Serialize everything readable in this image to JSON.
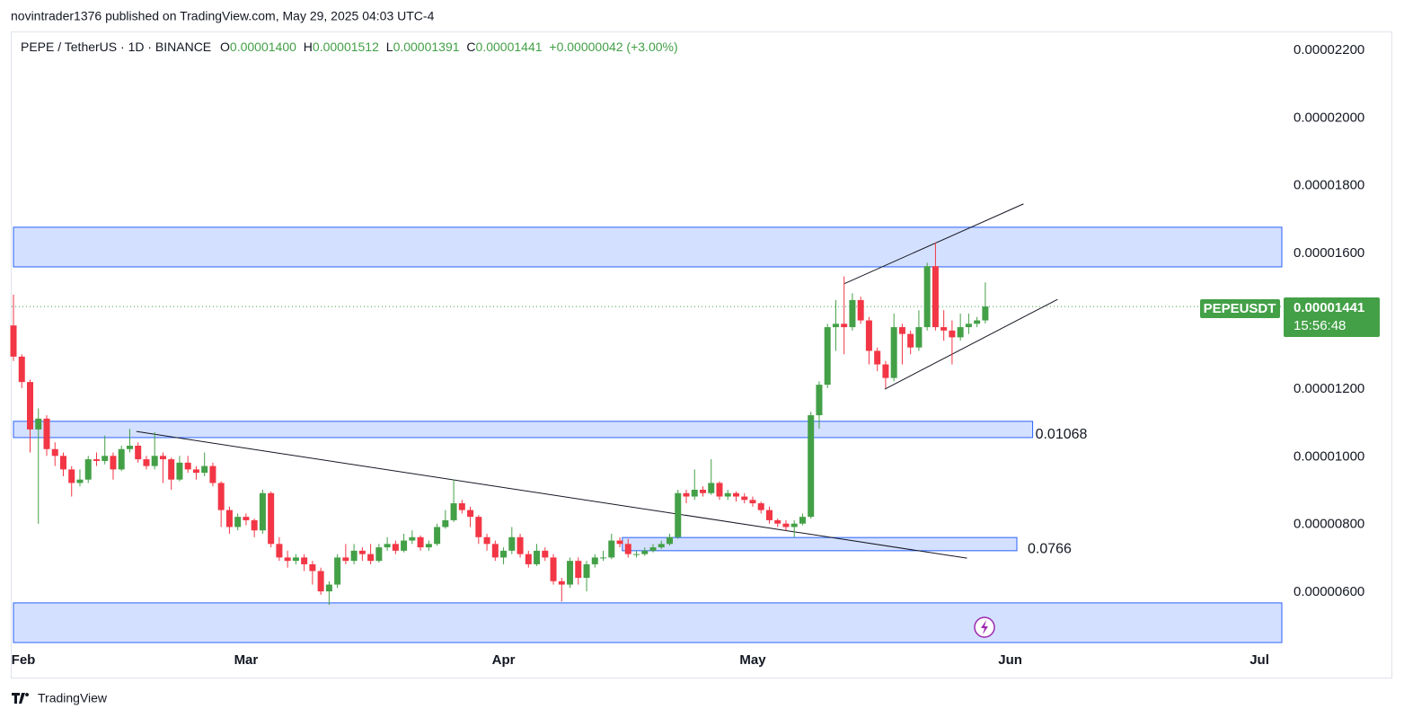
{
  "publisher": "novintrader1376 published on TradingView.com, May 29, 2025 04:03 UTC-4",
  "brand": "TradingView",
  "chart_data": {
    "type": "candlestick",
    "symbol": "PEPE / TetherUS · 1D · BINANCE",
    "legend": {
      "open_label": "O",
      "open": "0.00001400",
      "high_label": "H",
      "high": "0.00001512",
      "low_label": "L",
      "low": "0.00001391",
      "close_label": "C",
      "close": "0.00001441",
      "change": "+0.00000042 (+3.00%)"
    },
    "ticker": "PEPEUSDT",
    "last_price": "0.00001441",
    "countdown": "15:56:48",
    "up_color": "#43a047",
    "down_color": "#f23645",
    "zone_color": "#2962ff",
    "xlim": [
      0,
      152.7
    ],
    "xticks": [
      {
        "value": 0,
        "label": "Feb"
      },
      {
        "value": 28,
        "label": "Mar"
      },
      {
        "value": 59,
        "label": "Apr"
      },
      {
        "value": 89,
        "label": "May"
      },
      {
        "value": 120,
        "label": "Jun"
      },
      {
        "value": 150,
        "label": "Jul"
      }
    ],
    "ylim": [
      4.49e-06,
      2.253e-05
    ],
    "yticks": [
      {
        "value": 2.2e-05,
        "label": "0.00002200"
      },
      {
        "value": 2e-05,
        "label": "0.00002000"
      },
      {
        "value": 1.8e-05,
        "label": "0.00001800"
      },
      {
        "value": 1.6e-05,
        "label": "0.00001600"
      },
      {
        "value": 1.2e-05,
        "label": "0.00001200"
      },
      {
        "value": 1e-05,
        "label": "0.00001000"
      },
      {
        "value": 8e-06,
        "label": "0.00000800"
      },
      {
        "value": 6e-06,
        "label": "0.00000600"
      }
    ],
    "zones": [
      {
        "x": [
          0,
          152.7
        ],
        "y": [
          1.675e-05,
          1.558e-05
        ]
      },
      {
        "x": [
          0,
          122.7
        ],
        "y": [
          1.102e-05,
          1.054e-05
        ],
        "label": "0.01068"
      },
      {
        "x": [
          73.3,
          120.8
        ],
        "y": [
          7.59e-06,
          7.2e-06
        ],
        "label": "0.0766"
      },
      {
        "x": [
          0,
          152.7
        ],
        "y": [
          5.66e-06,
          4.49e-06
        ]
      }
    ],
    "lines": [
      {
        "x": [
          14.8,
          114.8
        ],
        "y": [
          1.072e-05,
          6.98e-06
        ]
      },
      {
        "x": [
          100,
          121.6
        ],
        "y": [
          1.508e-05,
          1.744e-05
        ]
      },
      {
        "x": [
          104.9,
          125.7
        ],
        "y": [
          1.197e-05,
          1.462e-05
        ]
      }
    ],
    "ohlc": [
      [
        1.385e-05,
        1.476e-05,
        1.28e-05,
        1.293e-05
      ],
      [
        1.293e-05,
        1.3e-05,
        1.2e-05,
        1.218e-05
      ],
      [
        1.218e-05,
        1.225e-05,
        1.01e-05,
        1.078e-05
      ],
      [
        1.078e-05,
        1.14e-05,
        8e-06,
        1.11e-05
      ],
      [
        1.11e-05,
        1.12e-05,
        1e-05,
        1.02e-05
      ],
      [
        1.02e-05,
        1.04e-05,
        9.7e-06,
        1e-05
      ],
      [
        1e-05,
        1.01e-05,
        9.4e-06,
        9.6e-06
      ],
      [
        9.6e-06,
        9.7e-06,
        8.8e-06,
        9.2e-06
      ],
      [
        9.2e-06,
        9.6e-06,
        9.1e-06,
        9.3e-06
      ],
      [
        9.3e-06,
        1e-05,
        9.2e-06,
        9.9e-06
      ],
      [
        9.9e-06,
        1.01e-05,
        9.7e-06,
        9.85e-06
      ],
      [
        9.85e-06,
        1.06e-05,
        9.75e-06,
        1e-05
      ],
      [
        1e-05,
        1.01e-05,
        9.3e-06,
        9.6e-06
      ],
      [
        9.6e-06,
        1.03e-05,
        9.55e-06,
        1.02e-05
      ],
      [
        1.02e-05,
        1.08e-05,
        1.01e-05,
        1.03e-05
      ],
      [
        1.03e-05,
        1.04e-05,
        9.8e-06,
        9.9e-06
      ],
      [
        9.9e-06,
        1e-05,
        9.6e-06,
        9.7e-06
      ],
      [
        9.7e-06,
        1.07e-05,
        9.6e-06,
        1e-05
      ],
      [
        1e-05,
        1.01e-05,
        9.2e-06,
        9.9e-06
      ],
      [
        9.9e-06,
        9.95e-06,
        9e-06,
        9.3e-06
      ],
      [
        9.3e-06,
        1e-05,
        9.25e-06,
        9.8e-06
      ],
      [
        9.8e-06,
        1e-05,
        9.5e-06,
        9.6e-06
      ],
      [
        9.6e-06,
        9.7e-06,
        9.3e-06,
        9.5e-06
      ],
      [
        9.5e-06,
        1.01e-05,
        9.4e-06,
        9.7e-06
      ],
      [
        9.7e-06,
        9.8e-06,
        9.1e-06,
        9.2e-06
      ],
      [
        9.2e-06,
        9.25e-06,
        7.9e-06,
        8.4e-06
      ],
      [
        8.4e-06,
        8.5e-06,
        7.7e-06,
        7.9e-06
      ],
      [
        7.9e-06,
        8.3e-06,
        7.8e-06,
        8.2e-06
      ],
      [
        8.2e-06,
        8.3e-06,
        7.95e-06,
        8.1e-06
      ],
      [
        8.1e-06,
        8.15e-06,
        7.6e-06,
        7.8e-06
      ],
      [
        7.8e-06,
        9e-06,
        7.7e-06,
        8.9e-06
      ],
      [
        8.9e-06,
        8.95e-06,
        7.3e-06,
        7.4e-06
      ],
      [
        7.4e-06,
        7.6e-06,
        6.9e-06,
        7e-06
      ],
      [
        7e-06,
        7.2e-06,
        6.7e-06,
        6.9e-06
      ],
      [
        6.9e-06,
        7.1e-06,
        6.8e-06,
        7e-06
      ],
      [
        7e-06,
        7.1e-06,
        6.6e-06,
        6.8e-06
      ],
      [
        6.8e-06,
        6.9e-06,
        6.2e-06,
        6.6e-06
      ],
      [
        6.6e-06,
        6.7e-06,
        5.9e-06,
        6e-06
      ],
      [
        6e-06,
        6.3e-06,
        5.6e-06,
        6.2e-06
      ],
      [
        6.2e-06,
        7.1e-06,
        6.1e-06,
        7e-06
      ],
      [
        7e-06,
        7.4e-06,
        6.8e-06,
        6.9e-06
      ],
      [
        6.9e-06,
        7.4e-06,
        6.8e-06,
        7.2e-06
      ],
      [
        7.2e-06,
        7.3e-06,
        6.9e-06,
        7.1e-06
      ],
      [
        7.1e-06,
        7.4e-06,
        6.8e-06,
        6.9e-06
      ],
      [
        6.9e-06,
        7.4e-06,
        6.85e-06,
        7.3e-06
      ],
      [
        7.3e-06,
        7.6e-06,
        7.2e-06,
        7.4e-06
      ],
      [
        7.4e-06,
        7.5e-06,
        7.1e-06,
        7.2e-06
      ],
      [
        7.2e-06,
        7.7e-06,
        7.15e-06,
        7.5e-06
      ],
      [
        7.5e-06,
        7.8e-06,
        7.4e-06,
        7.6e-06
      ],
      [
        7.6e-06,
        7.65e-06,
        7.2e-06,
        7.3e-06
      ],
      [
        7.3e-06,
        7.5e-06,
        7.2e-06,
        7.4e-06
      ],
      [
        7.4e-06,
        8e-06,
        7.35e-06,
        7.9e-06
      ],
      [
        7.9e-06,
        8.4e-06,
        7.85e-06,
        8.1e-06
      ],
      [
        8.1e-06,
        9.3e-06,
        8.05e-06,
        8.6e-06
      ],
      [
        8.6e-06,
        8.7e-06,
        8.3e-06,
        8.4e-06
      ],
      [
        8.4e-06,
        8.5e-06,
        7.9e-06,
        8.2e-06
      ],
      [
        8.2e-06,
        8.25e-06,
        7.4e-06,
        7.6e-06
      ],
      [
        7.6e-06,
        7.7e-06,
        7.2e-06,
        7.4e-06
      ],
      [
        7.4e-06,
        7.5e-06,
        6.9e-06,
        7e-06
      ],
      [
        7e-06,
        7.3e-06,
        6.8e-06,
        7.2e-06
      ],
      [
        7.2e-06,
        7.9e-06,
        7.1e-06,
        7.6e-06
      ],
      [
        7.6e-06,
        7.7e-06,
        7e-06,
        7.1e-06
      ],
      [
        7.1e-06,
        7.2e-06,
        6.7e-06,
        6.8e-06
      ],
      [
        6.8e-06,
        7.4e-06,
        6.75e-06,
        7.2e-06
      ],
      [
        7.2e-06,
        7.3e-06,
        6.9e-06,
        7e-06
      ],
      [
        7e-06,
        7.1e-06,
        6.2e-06,
        6.3e-06
      ],
      [
        6.3e-06,
        6.4e-06,
        5.7e-06,
        6.2e-06
      ],
      [
        6.2e-06,
        7e-06,
        6.1e-06,
        6.9e-06
      ],
      [
        6.9e-06,
        7e-06,
        6.2e-06,
        6.4e-06
      ],
      [
        6.4e-06,
        6.9e-06,
        6e-06,
        6.8e-06
      ],
      [
        6.8e-06,
        7.1e-06,
        6.7e-06,
        7e-06
      ],
      [
        7e-06,
        7.2e-06,
        6.9e-06,
        7e-06
      ],
      [
        7e-06,
        7.7e-06,
        6.95e-06,
        7.5e-06
      ],
      [
        7.5e-06,
        7.6e-06,
        7.3e-06,
        7.4e-06
      ],
      [
        7.4e-06,
        7.55e-06,
        7e-06,
        7.1e-06
      ],
      [
        7.1e-06,
        7.2e-06,
        7e-06,
        7.1e-06
      ],
      [
        7.1e-06,
        7.3e-06,
        7.05e-06,
        7.2e-06
      ],
      [
        7.2e-06,
        7.4e-06,
        7.15e-06,
        7.3e-06
      ],
      [
        7.3e-06,
        7.5e-06,
        7.25e-06,
        7.4e-06
      ],
      [
        7.4e-06,
        7.7e-06,
        7.35e-06,
        7.6e-06
      ],
      [
        7.6e-06,
        9e-06,
        7.55e-06,
        8.9e-06
      ],
      [
        8.9e-06,
        9e-06,
        8.6e-06,
        8.8e-06
      ],
      [
        8.8e-06,
        9.6e-06,
        8.7e-06,
        9e-06
      ],
      [
        9e-06,
        9.1e-06,
        8.8e-06,
        8.9e-06
      ],
      [
        8.9e-06,
        9.9e-06,
        8.85e-06,
        9.2e-06
      ],
      [
        9.2e-06,
        9.25e-06,
        8.7e-06,
        8.8e-06
      ],
      [
        8.8e-06,
        9e-06,
        8.7e-06,
        8.9e-06
      ],
      [
        8.9e-06,
        8.95e-06,
        8.65e-06,
        8.8e-06
      ],
      [
        8.8e-06,
        8.9e-06,
        8.6e-06,
        8.7e-06
      ],
      [
        8.7e-06,
        8.8e-06,
        8.5e-06,
        8.6e-06
      ],
      [
        8.6e-06,
        8.65e-06,
        8.3e-06,
        8.4e-06
      ],
      [
        8.4e-06,
        8.5e-06,
        8e-06,
        8.1e-06
      ],
      [
        8.1e-06,
        8.15e-06,
        7.9e-06,
        8e-06
      ],
      [
        8e-06,
        8.1e-06,
        7.8e-06,
        7.9e-06
      ],
      [
        7.9e-06,
        8.1e-06,
        7.6e-06,
        8e-06
      ],
      [
        8e-06,
        8.3e-06,
        7.95e-06,
        8.2e-06
      ],
      [
        8.2e-06,
        1.13e-05,
        8.15e-06,
        1.12e-05
      ],
      [
        1.12e-05,
        1.22e-05,
        1.08e-05,
        1.21e-05
      ],
      [
        1.21e-05,
        1.39e-05,
        1.2e-05,
        1.38e-05
      ],
      [
        1.38e-05,
        1.46e-05,
        1.31e-05,
        1.39e-05
      ],
      [
        1.39e-05,
        1.53e-05,
        1.3e-05,
        1.38e-05
      ],
      [
        1.38e-05,
        1.48e-05,
        1.37e-05,
        1.46e-05
      ],
      [
        1.46e-05,
        1.47e-05,
        1.39e-05,
        1.4e-05
      ],
      [
        1.4e-05,
        1.41e-05,
        1.27e-05,
        1.31e-05
      ],
      [
        1.31e-05,
        1.32e-05,
        1.25e-05,
        1.27e-05
      ],
      [
        1.27e-05,
        1.28e-05,
        1.2e-05,
        1.23e-05
      ],
      [
        1.23e-05,
        1.42e-05,
        1.22e-05,
        1.38e-05
      ],
      [
        1.38e-05,
        1.39e-05,
        1.27e-05,
        1.36e-05
      ],
      [
        1.36e-05,
        1.37e-05,
        1.3e-05,
        1.32e-05
      ],
      [
        1.32e-05,
        1.43e-05,
        1.31e-05,
        1.38e-05
      ],
      [
        1.38e-05,
        1.57e-05,
        1.37e-05,
        1.56e-05
      ],
      [
        1.56e-05,
        1.63e-05,
        1.37e-05,
        1.38e-05
      ],
      [
        1.38e-05,
        1.43e-05,
        1.34e-05,
        1.37e-05
      ],
      [
        1.37e-05,
        1.4e-05,
        1.27e-05,
        1.35e-05
      ],
      [
        1.35e-05,
        1.42e-05,
        1.34e-05,
        1.38e-05
      ],
      [
        1.38e-05,
        1.42e-05,
        1.36e-05,
        1.39e-05
      ],
      [
        1.39e-05,
        1.41e-05,
        1.38e-05,
        1.4e-05
      ],
      [
        1.4e-05,
        1.512e-05,
        1.391e-05,
        1.441e-05
      ]
    ]
  }
}
